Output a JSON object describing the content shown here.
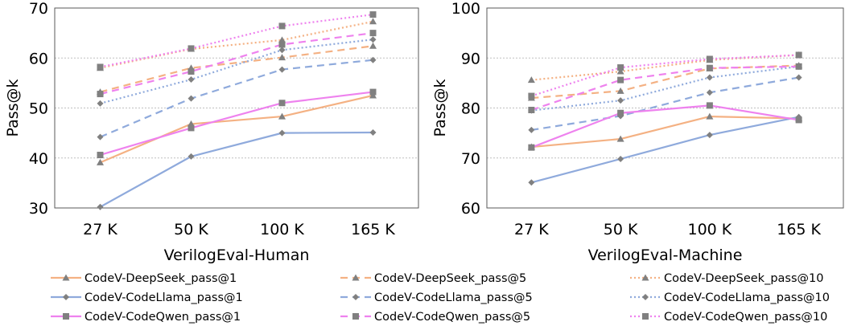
{
  "chart_data": [
    {
      "type": "line",
      "xlabel": "VerilogEval-Human",
      "ylabel": "Pass@k",
      "ylim": [
        30,
        70
      ],
      "yticks": [
        30,
        40,
        50,
        60,
        70
      ],
      "categories": [
        "27 K",
        "50 K",
        "100 K",
        "165 K"
      ],
      "grid": "horizontal dotted",
      "series": [
        {
          "name": "CodeV-DeepSeek_pass@1",
          "color": "#F4B183",
          "dash": "solid",
          "marker": "triangle",
          "values": [
            39.1,
            46.8,
            48.3,
            52.5
          ]
        },
        {
          "name": "CodeV-DeepSeek_pass@5",
          "color": "#F4B183",
          "dash": "dashed",
          "marker": "triangle",
          "values": [
            53.2,
            58.0,
            60.1,
            62.4
          ]
        },
        {
          "name": "CodeV-DeepSeek_pass@10",
          "color": "#F4B183",
          "dash": "dotted",
          "marker": "triangle",
          "values": [
            58.0,
            61.8,
            63.6,
            67.3
          ]
        },
        {
          "name": "CodeV-CodeLlama_pass@1",
          "color": "#8FAADC",
          "dash": "solid",
          "marker": "diamond",
          "values": [
            30.2,
            40.3,
            45.0,
            45.1
          ]
        },
        {
          "name": "CodeV-CodeLlama_pass@5",
          "color": "#8FAADC",
          "dash": "dashed",
          "marker": "diamond",
          "values": [
            44.2,
            51.9,
            57.7,
            59.6
          ]
        },
        {
          "name": "CodeV-CodeLlama_pass@10",
          "color": "#8FAADC",
          "dash": "dotted",
          "marker": "diamond",
          "values": [
            50.9,
            55.7,
            61.6,
            63.7
          ]
        },
        {
          "name": "CodeV-CodeQwen_pass@1",
          "color": "#EE82EE",
          "dash": "solid",
          "marker": "square",
          "values": [
            40.6,
            46.0,
            51.0,
            53.2
          ]
        },
        {
          "name": "CodeV-CodeQwen_pass@5",
          "color": "#EE82EE",
          "dash": "dashed",
          "marker": "square",
          "values": [
            52.8,
            57.3,
            62.7,
            65.0
          ]
        },
        {
          "name": "CodeV-CodeQwen_pass@10",
          "color": "#EE82EE",
          "dash": "dotted",
          "marker": "square",
          "values": [
            58.2,
            61.9,
            66.4,
            68.7
          ]
        }
      ]
    },
    {
      "type": "line",
      "xlabel": "VerilogEval-Machine",
      "ylabel": "Pass@k",
      "ylim": [
        60,
        100
      ],
      "yticks": [
        60,
        70,
        80,
        90,
        100
      ],
      "categories": [
        "27 K",
        "50 K",
        "100 K",
        "165 K"
      ],
      "grid": "horizontal dotted",
      "series": [
        {
          "name": "CodeV-DeepSeek_pass@1",
          "color": "#F4B183",
          "dash": "solid",
          "marker": "triangle",
          "values": [
            72.2,
            73.8,
            78.3,
            77.9
          ]
        },
        {
          "name": "CodeV-DeepSeek_pass@5",
          "color": "#F4B183",
          "dash": "dashed",
          "marker": "triangle",
          "values": [
            82.0,
            83.4,
            87.9,
            88.5
          ]
        },
        {
          "name": "CodeV-DeepSeek_pass@10",
          "color": "#F4B183",
          "dash": "dotted",
          "marker": "triangle",
          "values": [
            85.6,
            87.3,
            89.6,
            90.6
          ]
        },
        {
          "name": "CodeV-CodeLlama_pass@1",
          "color": "#8FAADC",
          "dash": "solid",
          "marker": "diamond",
          "values": [
            65.1,
            69.8,
            74.6,
            78.2
          ]
        },
        {
          "name": "CodeV-CodeLlama_pass@5",
          "color": "#8FAADC",
          "dash": "dashed",
          "marker": "diamond",
          "values": [
            75.6,
            78.4,
            83.1,
            86.1
          ]
        },
        {
          "name": "CodeV-CodeLlama_pass@10",
          "color": "#8FAADC",
          "dash": "dotted",
          "marker": "diamond",
          "values": [
            79.5,
            81.5,
            86.1,
            88.3
          ]
        },
        {
          "name": "CodeV-CodeQwen_pass@1",
          "color": "#EE82EE",
          "dash": "solid",
          "marker": "square",
          "values": [
            72.1,
            79.0,
            80.5,
            77.6
          ]
        },
        {
          "name": "CodeV-CodeQwen_pass@5",
          "color": "#EE82EE",
          "dash": "dashed",
          "marker": "square",
          "values": [
            79.6,
            85.6,
            88.0,
            88.3
          ]
        },
        {
          "name": "CodeV-CodeQwen_pass@10",
          "color": "#EE82EE",
          "dash": "dotted",
          "marker": "square",
          "values": [
            82.4,
            88.1,
            89.8,
            90.6
          ]
        }
      ]
    }
  ],
  "legend": {
    "placement": "bottom",
    "items": [
      "CodeV-DeepSeek_pass@1",
      "CodeV-DeepSeek_pass@5",
      "CodeV-DeepSeek_pass@10",
      "CodeV-CodeLlama_pass@1",
      "CodeV-CodeLlama_pass@5",
      "CodeV-CodeLlama_pass@10",
      "CodeV-CodeQwen_pass@1",
      "CodeV-CodeQwen_pass@5",
      "CodeV-CodeQwen_pass@10"
    ]
  }
}
